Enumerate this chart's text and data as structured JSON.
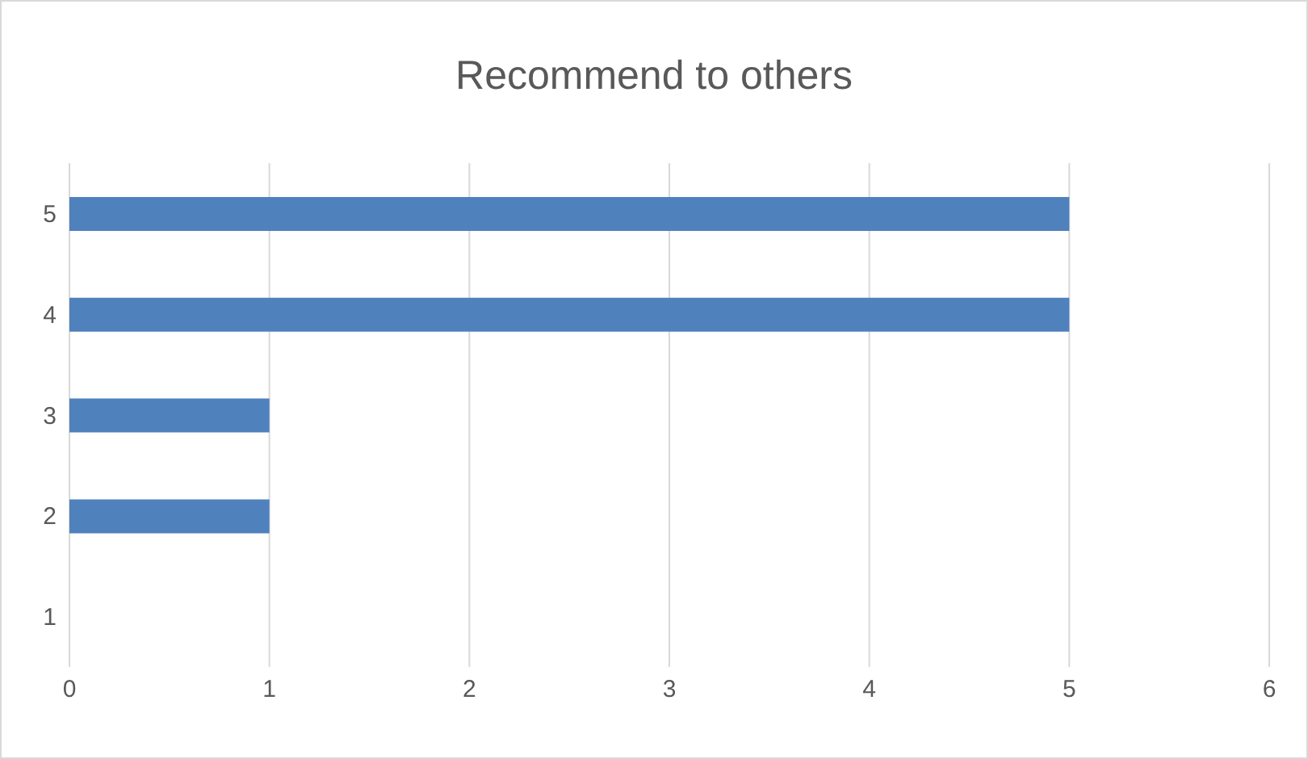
{
  "chart_data": {
    "type": "bar",
    "orientation": "horizontal",
    "title": "Recommend to others",
    "categories": [
      "5",
      "4",
      "3",
      "2",
      "1"
    ],
    "values": [
      5,
      5,
      1,
      1,
      0
    ],
    "color": "#4f81bd",
    "xlim": [
      0,
      6
    ],
    "xticks": [
      0,
      1,
      2,
      3,
      4,
      5,
      6
    ],
    "grid": "x"
  }
}
